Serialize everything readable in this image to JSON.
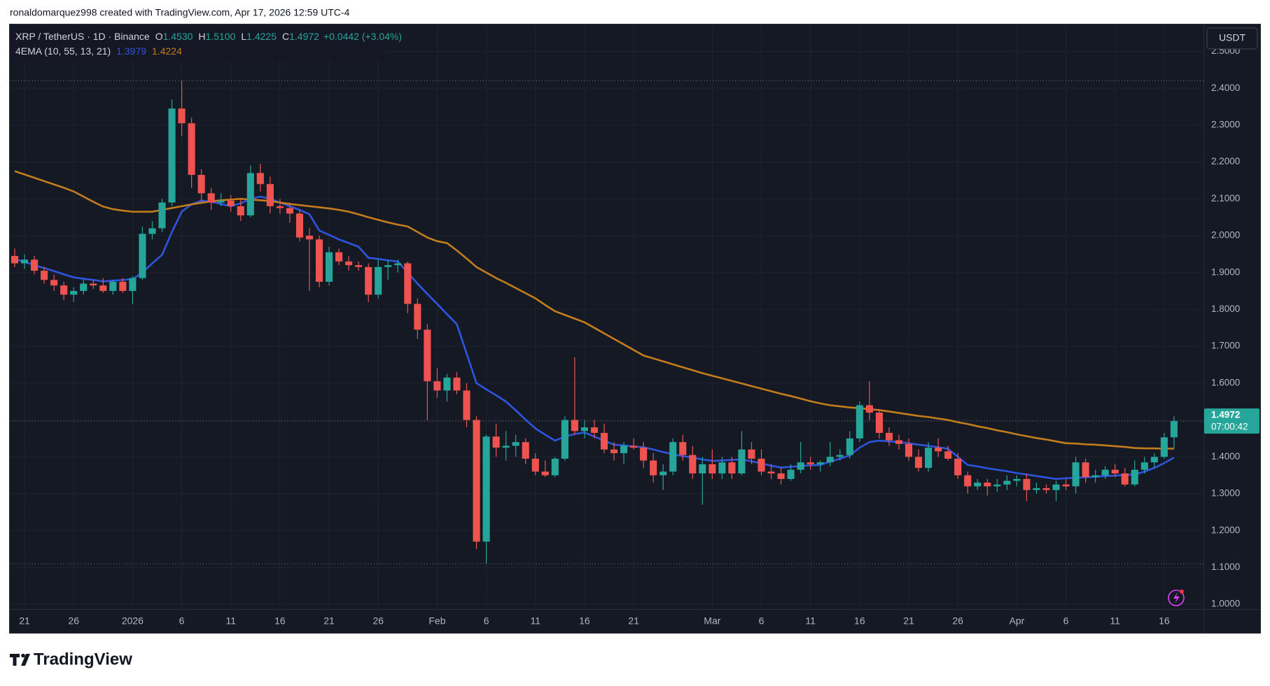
{
  "attribution": "ronaldomarquez998 created with TradingView.com, Apr 17, 2026 12:59 UTC-4",
  "brand": "TradingView",
  "chart_data": {
    "type": "candlestick",
    "symbol": "XRP / TetherUS · 1D · Binance",
    "ohlc_legend": [
      {
        "key": "O",
        "value": "1.4530"
      },
      {
        "key": "H",
        "value": "1.5100"
      },
      {
        "key": "L",
        "value": "1.4225"
      },
      {
        "key": "C",
        "value": "1.4972"
      }
    ],
    "change_label": "+0.0442 (+3.04%)",
    "currency": "USDT",
    "up_color": "#26a69a",
    "down_color": "#ef5350",
    "open": [
      1.945,
      1.925,
      1.935,
      1.905,
      1.88,
      1.865,
      1.84,
      1.85,
      1.87,
      1.865,
      1.85,
      1.875,
      1.85,
      1.885,
      2.005,
      2.02,
      2.09,
      2.345,
      2.305,
      2.165,
      2.115,
      2.09,
      2.095,
      2.08,
      2.055,
      2.17,
      2.14,
      2.08,
      2.075,
      2.06,
      2.0,
      1.99,
      1.875,
      1.955,
      1.93,
      1.92,
      1.915,
      1.84,
      1.915,
      1.92,
      1.925,
      1.815,
      1.745,
      1.605,
      1.58,
      1.615,
      1.58,
      1.5,
      1.17,
      1.455,
      1.425,
      1.43,
      1.44,
      1.395,
      1.36,
      1.35,
      1.395,
      1.5,
      1.47,
      1.48,
      1.465,
      1.42,
      1.41,
      1.43,
      1.425,
      1.39,
      1.35,
      1.36,
      1.44,
      1.405,
      1.355,
      1.38,
      1.355,
      1.385,
      1.355,
      1.42,
      1.395,
      1.36,
      1.355,
      1.34,
      1.365,
      1.385,
      1.38,
      1.385,
      1.4,
      1.405,
      1.45,
      1.54,
      1.52,
      1.465,
      1.445,
      1.435,
      1.4,
      1.37,
      1.425,
      1.415,
      1.395,
      1.35,
      1.32,
      1.33,
      1.32,
      1.325,
      1.335,
      1.34,
      1.31,
      1.315,
      1.31,
      1.325,
      1.32,
      1.385,
      1.345,
      1.35,
      1.365,
      1.355,
      1.325,
      1.365,
      1.385,
      1.4,
      1.453
    ],
    "high": [
      1.965,
      1.95,
      1.945,
      1.915,
      1.895,
      1.875,
      1.86,
      1.88,
      1.88,
      1.885,
      1.88,
      1.885,
      1.89,
      2.025,
      2.04,
      2.1,
      2.37,
      2.42,
      2.32,
      2.18,
      2.13,
      2.115,
      2.11,
      2.1,
      2.19,
      2.195,
      2.16,
      2.1,
      2.09,
      2.07,
      2.02,
      2.0,
      1.97,
      1.965,
      1.945,
      1.93,
      1.925,
      1.935,
      1.935,
      1.935,
      1.93,
      1.83,
      1.76,
      1.64,
      1.625,
      1.63,
      1.6,
      1.51,
      1.46,
      1.49,
      1.47,
      1.46,
      1.45,
      1.41,
      1.39,
      1.4,
      1.51,
      1.67,
      1.5,
      1.5,
      1.49,
      1.44,
      1.44,
      1.45,
      1.44,
      1.41,
      1.38,
      1.45,
      1.46,
      1.43,
      1.4,
      1.42,
      1.4,
      1.4,
      1.47,
      1.44,
      1.42,
      1.38,
      1.37,
      1.38,
      1.44,
      1.4,
      1.39,
      1.44,
      1.42,
      1.47,
      1.55,
      1.605,
      1.53,
      1.48,
      1.46,
      1.45,
      1.42,
      1.44,
      1.45,
      1.43,
      1.41,
      1.36,
      1.34,
      1.34,
      1.34,
      1.35,
      1.35,
      1.355,
      1.33,
      1.325,
      1.335,
      1.34,
      1.4,
      1.395,
      1.365,
      1.375,
      1.38,
      1.37,
      1.39,
      1.4,
      1.41,
      1.465,
      1.51
    ],
    "low": [
      1.915,
      1.91,
      1.895,
      1.87,
      1.85,
      1.825,
      1.82,
      1.84,
      1.855,
      1.845,
      1.84,
      1.845,
      1.815,
      1.88,
      1.99,
      2.01,
      2.08,
      2.27,
      2.13,
      2.09,
      2.07,
      2.08,
      2.065,
      2.04,
      2.05,
      2.12,
      2.06,
      2.06,
      2.035,
      1.985,
      1.85,
      1.86,
      1.865,
      1.92,
      1.905,
      1.905,
      1.82,
      1.83,
      1.88,
      1.9,
      1.79,
      1.72,
      1.5,
      1.56,
      1.55,
      1.57,
      1.48,
      1.15,
      1.11,
      1.4,
      1.39,
      1.4,
      1.38,
      1.35,
      1.345,
      1.345,
      1.39,
      1.46,
      1.45,
      1.45,
      1.41,
      1.39,
      1.38,
      1.42,
      1.37,
      1.33,
      1.31,
      1.35,
      1.39,
      1.34,
      1.27,
      1.34,
      1.34,
      1.34,
      1.35,
      1.38,
      1.35,
      1.34,
      1.325,
      1.335,
      1.355,
      1.365,
      1.36,
      1.375,
      1.39,
      1.395,
      1.44,
      1.5,
      1.45,
      1.43,
      1.42,
      1.39,
      1.36,
      1.36,
      1.4,
      1.39,
      1.34,
      1.3,
      1.31,
      1.295,
      1.305,
      1.31,
      1.32,
      1.28,
      1.3,
      1.3,
      1.28,
      1.31,
      1.3,
      1.33,
      1.33,
      1.34,
      1.345,
      1.32,
      1.32,
      1.355,
      1.37,
      1.395,
      1.4225
    ],
    "close": [
      1.925,
      1.935,
      1.905,
      1.88,
      1.865,
      1.84,
      1.85,
      1.87,
      1.865,
      1.85,
      1.875,
      1.85,
      1.885,
      2.005,
      2.02,
      2.09,
      2.345,
      2.305,
      2.165,
      2.115,
      2.09,
      2.095,
      2.08,
      2.055,
      2.17,
      2.14,
      2.08,
      2.075,
      2.06,
      1.995,
      1.99,
      1.875,
      1.955,
      1.93,
      1.92,
      1.915,
      1.84,
      1.915,
      1.92,
      1.925,
      1.815,
      1.745,
      1.605,
      1.58,
      1.615,
      1.58,
      1.5,
      1.17,
      1.455,
      1.425,
      1.43,
      1.44,
      1.395,
      1.36,
      1.35,
      1.395,
      1.5,
      1.47,
      1.48,
      1.465,
      1.42,
      1.41,
      1.43,
      1.425,
      1.39,
      1.35,
      1.36,
      1.44,
      1.405,
      1.355,
      1.38,
      1.355,
      1.385,
      1.355,
      1.42,
      1.395,
      1.36,
      1.355,
      1.34,
      1.365,
      1.385,
      1.38,
      1.385,
      1.4,
      1.405,
      1.45,
      1.54,
      1.52,
      1.465,
      1.445,
      1.435,
      1.4,
      1.37,
      1.425,
      1.415,
      1.395,
      1.35,
      1.32,
      1.33,
      1.32,
      1.325,
      1.335,
      1.34,
      1.31,
      1.315,
      1.31,
      1.325,
      1.32,
      1.385,
      1.345,
      1.35,
      1.365,
      1.355,
      1.325,
      1.365,
      1.385,
      1.4,
      1.453,
      1.4972
    ],
    "xlim": [
      -0.5,
      121
    ],
    "xticks": [
      {
        "value": 1,
        "label": "21"
      },
      {
        "value": 6,
        "label": "26"
      },
      {
        "value": 12,
        "label": "2026"
      },
      {
        "value": 17,
        "label": "6"
      },
      {
        "value": 22,
        "label": "11"
      },
      {
        "value": 27,
        "label": "16"
      },
      {
        "value": 32,
        "label": "21"
      },
      {
        "value": 37,
        "label": "26"
      },
      {
        "value": 43,
        "label": "Feb"
      },
      {
        "value": 48,
        "label": "6"
      },
      {
        "value": 53,
        "label": "11"
      },
      {
        "value": 58,
        "label": "16"
      },
      {
        "value": 63,
        "label": "21"
      },
      {
        "value": 71,
        "label": "Mar"
      },
      {
        "value": 76,
        "label": "6"
      },
      {
        "value": 81,
        "label": "11"
      },
      {
        "value": 86,
        "label": "16"
      },
      {
        "value": 91,
        "label": "21"
      },
      {
        "value": 96,
        "label": "26"
      },
      {
        "value": 102,
        "label": "Apr"
      },
      {
        "value": 107,
        "label": "6"
      },
      {
        "value": 112,
        "label": "11"
      },
      {
        "value": 117,
        "label": "16"
      }
    ],
    "ylim": [
      0.987,
      2.573
    ],
    "yticks": [
      {
        "value": 1.0,
        "label": "1.0000"
      },
      {
        "value": 1.1,
        "label": "1.1000"
      },
      {
        "value": 1.2,
        "label": "1.2000"
      },
      {
        "value": 1.3,
        "label": "1.3000"
      },
      {
        "value": 1.4,
        "label": "1.4000"
      },
      {
        "value": 1.5,
        "label": "1.5000"
      },
      {
        "value": 1.6,
        "label": "1.6000"
      },
      {
        "value": 1.7,
        "label": "1.7000"
      },
      {
        "value": 1.8,
        "label": "1.8000"
      },
      {
        "value": 1.9,
        "label": "1.9000"
      },
      {
        "value": 2.0,
        "label": "2.0000"
      },
      {
        "value": 2.1,
        "label": "2.1000"
      },
      {
        "value": 2.2,
        "label": "2.2000"
      },
      {
        "value": 2.3,
        "label": "2.3000"
      },
      {
        "value": 2.4,
        "label": "2.4000"
      },
      {
        "value": 2.5,
        "label": "2.5000"
      }
    ],
    "grid": true,
    "indicator": {
      "name": "4EMA (10, 55, 13, 21)",
      "series": [
        {
          "color": "#2e55e0",
          "last_label": "1.3979",
          "values": [
            1.937,
            1.929,
            1.92,
            1.912,
            1.904,
            1.895,
            1.887,
            1.883,
            1.88,
            1.876,
            1.878,
            1.88,
            1.882,
            1.9,
            1.925,
            1.948,
            2.01,
            2.065,
            2.085,
            2.095,
            2.092,
            2.086,
            2.08,
            2.088,
            2.1,
            2.106,
            2.1,
            2.09,
            2.08,
            2.07,
            2.058,
            2.014,
            2.002,
            1.99,
            1.98,
            1.97,
            1.94,
            1.937,
            1.933,
            1.93,
            1.9,
            1.87,
            1.842,
            1.815,
            1.787,
            1.76,
            1.68,
            1.6,
            1.583,
            1.567,
            1.55,
            1.526,
            1.501,
            1.477,
            1.46,
            1.444,
            1.455,
            1.462,
            1.466,
            1.455,
            1.444,
            1.433,
            1.431,
            1.428,
            1.426,
            1.42,
            1.413,
            1.407,
            1.402,
            1.398,
            1.393,
            1.389,
            1.39,
            1.392,
            1.393,
            1.388,
            1.382,
            1.376,
            1.371,
            1.373,
            1.375,
            1.377,
            1.378,
            1.387,
            1.395,
            1.404,
            1.425,
            1.44,
            1.444,
            1.442,
            1.44,
            1.437,
            1.433,
            1.43,
            1.426,
            1.422,
            1.4,
            1.378,
            1.374,
            1.369,
            1.365,
            1.361,
            1.356,
            1.352,
            1.348,
            1.344,
            1.34,
            1.342,
            1.343,
            1.345,
            1.346,
            1.348,
            1.349,
            1.351,
            1.352,
            1.36,
            1.37,
            1.383,
            1.3979
          ]
        },
        {
          "color": "#c47d1c",
          "last_label": "1.4224",
          "values": [
            2.175,
            2.166,
            2.157,
            2.148,
            2.139,
            2.13,
            2.12,
            2.106,
            2.092,
            2.079,
            2.072,
            2.068,
            2.065,
            2.065,
            2.065,
            2.07,
            2.075,
            2.08,
            2.085,
            2.089,
            2.093,
            2.096,
            2.098,
            2.1,
            2.098,
            2.096,
            2.094,
            2.09,
            2.086,
            2.083,
            2.08,
            2.077,
            2.074,
            2.07,
            2.065,
            2.058,
            2.05,
            2.043,
            2.036,
            2.03,
            2.025,
            2.01,
            1.995,
            1.985,
            1.98,
            1.96,
            1.938,
            1.915,
            1.9,
            1.885,
            1.872,
            1.858,
            1.844,
            1.83,
            1.812,
            1.795,
            1.785,
            1.775,
            1.765,
            1.75,
            1.735,
            1.72,
            1.705,
            1.69,
            1.675,
            1.667,
            1.659,
            1.651,
            1.643,
            1.635,
            1.627,
            1.62,
            1.613,
            1.606,
            1.599,
            1.592,
            1.585,
            1.578,
            1.571,
            1.565,
            1.558,
            1.551,
            1.545,
            1.54,
            1.537,
            1.534,
            1.532,
            1.529,
            1.527,
            1.523,
            1.519,
            1.515,
            1.511,
            1.508,
            1.504,
            1.5,
            1.494,
            1.489,
            1.483,
            1.478,
            1.472,
            1.467,
            1.461,
            1.456,
            1.451,
            1.447,
            1.442,
            1.437,
            1.436,
            1.434,
            1.433,
            1.431,
            1.429,
            1.427,
            1.424,
            1.423,
            1.423,
            1.422,
            1.4224
          ]
        }
      ]
    },
    "last_price_label": "1.4972",
    "countdown": "07:00:42"
  }
}
